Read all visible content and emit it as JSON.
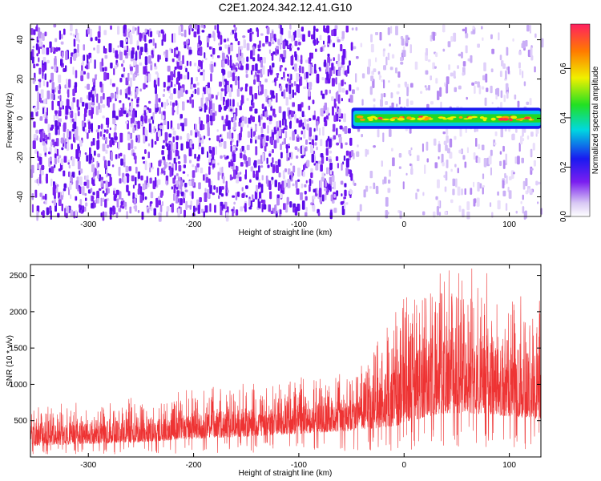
{
  "title": "C2E1.2024.342.12.41.G10",
  "chart_data": [
    {
      "type": "heatmap",
      "xlabel": "Height of straight line (km)",
      "ylabel": "Frequency (Hz)",
      "xlim": [
        -355,
        130
      ],
      "ylim": [
        -50,
        48
      ],
      "x_ticks": [
        -300,
        -200,
        -100,
        0,
        100
      ],
      "y_ticks": [
        -40,
        -20,
        0,
        20,
        40
      ],
      "x_tick_labels": [
        "-300",
        "-200",
        "-100",
        "0",
        "100"
      ],
      "y_tick_labels": [
        "-40",
        "-20",
        "0",
        "20",
        "40"
      ],
      "noise_boundary_x": -50,
      "signal": {
        "x_start": -50,
        "x_end": 130,
        "frequency": 0,
        "half_width": 1.5
      },
      "colorbar": {
        "label": "Normalized spectral amplitude",
        "range": [
          0.0,
          0.78
        ],
        "ticks": [
          0.0,
          0.2,
          0.4,
          0.6
        ],
        "tick_labels": [
          "0.0",
          "0.2",
          "0.4",
          "0.6"
        ]
      }
    },
    {
      "type": "line",
      "xlabel": "Height of straight line (km)",
      "ylabel": "SNR (10 * v/v)",
      "xlim": [
        -355,
        130
      ],
      "ylim": [
        0,
        2650
      ],
      "x_ticks": [
        -300,
        -200,
        -100,
        0,
        100
      ],
      "y_ticks": [
        500,
        1000,
        1500,
        2000,
        2500
      ],
      "x_tick_labels": [
        "-300",
        "-200",
        "-100",
        "0",
        "100"
      ],
      "y_tick_labels": [
        "500",
        "1000",
        "1500",
        "2000",
        "2500"
      ],
      "color": "#ee3333",
      "envelope": {
        "x": [
          -355,
          -300,
          -250,
          -200,
          -150,
          -100,
          -60,
          -40,
          -20,
          0,
          20,
          40,
          60,
          80,
          100,
          120,
          130
        ],
        "low": [
          150,
          180,
          200,
          250,
          280,
          320,
          350,
          380,
          400,
          450,
          550,
          600,
          600,
          580,
          560,
          520,
          500
        ],
        "high": [
          600,
          680,
          720,
          820,
          900,
          950,
          1000,
          1150,
          1600,
          2000,
          2200,
          2300,
          2280,
          2250,
          2180,
          2000,
          1900
        ]
      }
    }
  ]
}
